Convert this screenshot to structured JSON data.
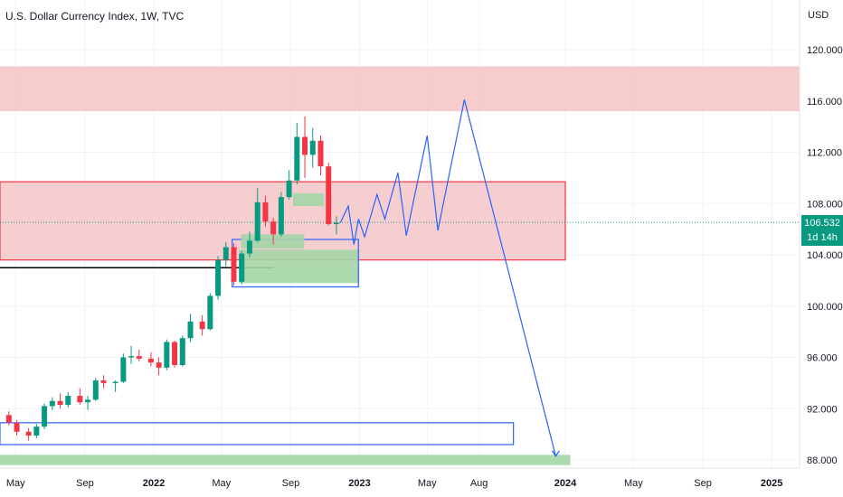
{
  "chart_data": {
    "type": "candlestick",
    "title": "U.S. Dollar Currency Index, 1W, TVC",
    "y_unit": "USD",
    "ylim": [
      87.8,
      122
    ],
    "y_ticks": [
      "120.000",
      "116.000",
      "112.000",
      "108.000",
      "104.000",
      "100.000",
      "96.000",
      "92.000",
      "88.000"
    ],
    "y_tick_values": [
      120,
      116,
      112,
      108,
      104,
      100,
      96,
      92,
      88
    ],
    "x_ticks": [
      "May",
      "Sep",
      "2022",
      "May",
      "Sep",
      "2023",
      "May",
      "Aug",
      "2024",
      "May",
      "Sep",
      "2025"
    ],
    "x_tick_dates": [
      "2021-05-01",
      "2021-09-01",
      "2022-01-01",
      "2022-05-01",
      "2022-09-01",
      "2023-01-01",
      "2023-05-01",
      "2023-08-01",
      "2024-01-01",
      "2024-05-01",
      "2024-09-01",
      "2025-01-01"
    ],
    "last_price": "106.532",
    "last_price_value": 106.532,
    "countdown": "1d 14h",
    "series": [
      {
        "name": "",
        "candles": [
          {
            "date": "2021-04-19",
            "o": 91.5,
            "h": 91.8,
            "l": 90.7,
            "c": 90.9
          },
          {
            "date": "2021-05-03",
            "o": 90.9,
            "h": 91.1,
            "l": 89.9,
            "c": 90.2
          },
          {
            "date": "2021-05-24",
            "o": 90.2,
            "h": 90.5,
            "l": 89.5,
            "c": 89.9
          },
          {
            "date": "2021-06-07",
            "o": 89.9,
            "h": 90.8,
            "l": 89.7,
            "c": 90.6
          },
          {
            "date": "2021-06-21",
            "o": 90.6,
            "h": 92.4,
            "l": 90.4,
            "c": 92.2
          },
          {
            "date": "2021-07-05",
            "o": 92.2,
            "h": 92.9,
            "l": 91.9,
            "c": 92.6
          },
          {
            "date": "2021-07-19",
            "o": 92.6,
            "h": 93.2,
            "l": 92.0,
            "c": 92.3
          },
          {
            "date": "2021-08-02",
            "o": 92.3,
            "h": 93.3,
            "l": 92.1,
            "c": 93.0
          },
          {
            "date": "2021-08-23",
            "o": 93.0,
            "h": 93.6,
            "l": 92.3,
            "c": 92.5
          },
          {
            "date": "2021-09-06",
            "o": 92.5,
            "h": 93.0,
            "l": 91.9,
            "c": 92.7
          },
          {
            "date": "2021-09-20",
            "o": 92.7,
            "h": 94.4,
            "l": 92.6,
            "c": 94.2
          },
          {
            "date": "2021-10-04",
            "o": 94.2,
            "h": 94.6,
            "l": 93.6,
            "c": 94.0
          },
          {
            "date": "2021-10-25",
            "o": 94.0,
            "h": 94.2,
            "l": 93.3,
            "c": 94.1
          },
          {
            "date": "2021-11-08",
            "o": 94.1,
            "h": 96.3,
            "l": 94.0,
            "c": 96.0
          },
          {
            "date": "2021-11-22",
            "o": 96.0,
            "h": 96.9,
            "l": 95.5,
            "c": 96.1
          },
          {
            "date": "2021-12-06",
            "o": 96.1,
            "h": 96.6,
            "l": 95.7,
            "c": 95.9
          },
          {
            "date": "2021-12-27",
            "o": 95.9,
            "h": 96.4,
            "l": 95.3,
            "c": 95.6
          },
          {
            "date": "2022-01-10",
            "o": 95.6,
            "h": 96.0,
            "l": 94.6,
            "c": 95.2
          },
          {
            "date": "2022-01-24",
            "o": 95.2,
            "h": 97.4,
            "l": 95.0,
            "c": 97.2
          },
          {
            "date": "2022-02-07",
            "o": 97.2,
            "h": 97.3,
            "l": 95.2,
            "c": 95.4
          },
          {
            "date": "2022-02-21",
            "o": 95.4,
            "h": 97.7,
            "l": 95.3,
            "c": 97.5
          },
          {
            "date": "2022-03-07",
            "o": 97.5,
            "h": 99.4,
            "l": 97.2,
            "c": 98.8
          },
          {
            "date": "2022-03-28",
            "o": 98.8,
            "h": 99.3,
            "l": 97.7,
            "c": 98.2
          },
          {
            "date": "2022-04-11",
            "o": 98.2,
            "h": 101.0,
            "l": 98.1,
            "c": 100.8
          },
          {
            "date": "2022-04-25",
            "o": 100.8,
            "h": 103.9,
            "l": 100.5,
            "c": 103.6
          },
          {
            "date": "2022-05-09",
            "o": 103.6,
            "h": 105.0,
            "l": 103.1,
            "c": 104.6
          },
          {
            "date": "2022-05-23",
            "o": 104.6,
            "h": 104.9,
            "l": 101.6,
            "c": 101.9
          },
          {
            "date": "2022-06-06",
            "o": 101.9,
            "h": 104.3,
            "l": 101.7,
            "c": 104.1
          },
          {
            "date": "2022-06-20",
            "o": 104.1,
            "h": 105.8,
            "l": 103.8,
            "c": 105.1
          },
          {
            "date": "2022-07-04",
            "o": 105.1,
            "h": 109.2,
            "l": 105.0,
            "c": 108.1
          },
          {
            "date": "2022-07-18",
            "o": 108.1,
            "h": 108.6,
            "l": 106.2,
            "c": 106.6
          },
          {
            "date": "2022-08-01",
            "o": 106.6,
            "h": 106.9,
            "l": 104.8,
            "c": 105.6
          },
          {
            "date": "2022-08-15",
            "o": 105.6,
            "h": 108.9,
            "l": 105.4,
            "c": 108.5
          },
          {
            "date": "2022-08-29",
            "o": 108.5,
            "h": 110.6,
            "l": 108.3,
            "c": 109.8
          },
          {
            "date": "2022-09-12",
            "o": 109.8,
            "h": 114.3,
            "l": 109.5,
            "c": 113.2
          },
          {
            "date": "2022-09-26",
            "o": 113.2,
            "h": 114.8,
            "l": 110.0,
            "c": 111.8
          },
          {
            "date": "2022-10-10",
            "o": 111.8,
            "h": 113.9,
            "l": 110.8,
            "c": 112.9
          },
          {
            "date": "2022-10-24",
            "o": 112.9,
            "h": 113.3,
            "l": 110.2,
            "c": 110.9
          },
          {
            "date": "2022-11-07",
            "o": 110.9,
            "h": 111.2,
            "l": 106.3,
            "c": 106.4
          },
          {
            "date": "2022-11-21",
            "o": 106.4,
            "h": 107.0,
            "l": 105.6,
            "c": 106.5
          }
        ]
      }
    ],
    "annotations": [
      {
        "kind": "supply-zone",
        "color": "#f5c6c8",
        "y": [
          115.2,
          118.7
        ]
      },
      {
        "kind": "box",
        "color": "#f5c6c8",
        "border": "#f23645",
        "x": [
          "2021-04-01",
          "2024-01-01"
        ],
        "y": [
          103.6,
          109.7
        ]
      },
      {
        "kind": "level",
        "color": "#000000",
        "y": 103.0,
        "x": [
          "2021-04-01",
          "2022-08-01"
        ]
      },
      {
        "kind": "box",
        "color": "#a5d6a7",
        "x": [
          "2022-06-01",
          "2022-12-30"
        ],
        "y": [
          101.8,
          104.4
        ]
      },
      {
        "kind": "outline",
        "border": "#2962ff",
        "x": [
          "2022-05-20",
          "2022-12-30"
        ],
        "y": [
          101.5,
          105.2
        ]
      },
      {
        "kind": "box",
        "color": "#a5d6a7",
        "x": [
          "2022-06-05",
          "2022-09-25"
        ],
        "y": [
          104.5,
          105.6
        ]
      },
      {
        "kind": "box",
        "color": "#a5d6a7",
        "x": [
          "2022-09-05",
          "2022-10-30"
        ],
        "y": [
          107.8,
          108.8
        ]
      },
      {
        "kind": "outline",
        "border": "#2962ff",
        "x": [
          "2021-04-01",
          "2023-10-01"
        ],
        "y": [
          89.2,
          90.9
        ]
      },
      {
        "kind": "box",
        "color": "#a5d6a7",
        "x": [
          "2021-04-01",
          "2024-01-10"
        ],
        "y": [
          87.6,
          88.4
        ]
      }
    ],
    "projection": {
      "color": "#2962ff",
      "points": [
        [
          "2022-11-28",
          106.5
        ],
        [
          "2022-12-12",
          107.8
        ],
        [
          "2022-12-22",
          104.8
        ],
        [
          "2022-12-30",
          106.8
        ],
        [
          "2023-01-10",
          105.4
        ],
        [
          "2023-02-01",
          108.7
        ],
        [
          "2023-02-15",
          106.8
        ],
        [
          "2023-03-10",
          110.4
        ],
        [
          "2023-03-25",
          105.5
        ],
        [
          "2023-05-01",
          113.3
        ],
        [
          "2023-05-20",
          105.9
        ],
        [
          "2023-07-06",
          116.1
        ],
        [
          "2023-12-15",
          88.3
        ]
      ]
    },
    "current_level_line": {
      "color": "#089981",
      "y": 106.532
    }
  }
}
